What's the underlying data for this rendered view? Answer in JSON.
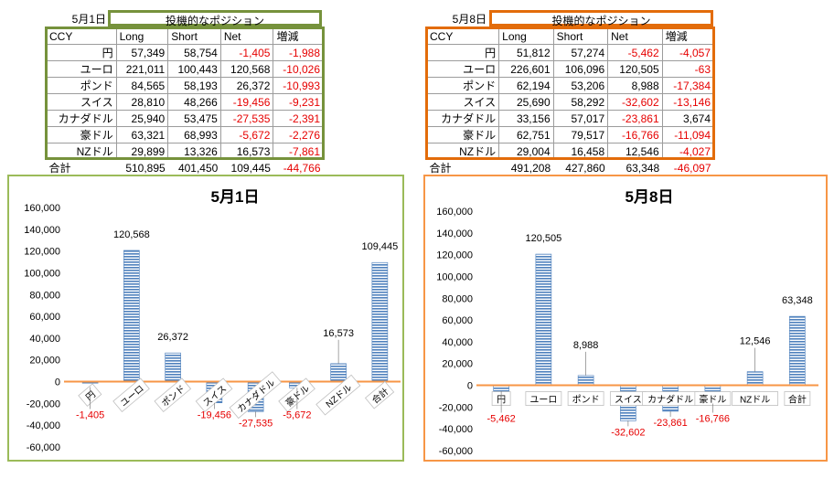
{
  "panels": [
    {
      "date": "5月1日",
      "title": "投機的なポジション",
      "headers": [
        "CCY",
        "Long",
        "Short",
        "Net",
        "増減"
      ],
      "rows": [
        {
          "ccy": "円",
          "long": "57,349",
          "short": "58,754",
          "net": "-1,405",
          "change": "-1,988"
        },
        {
          "ccy": "ユーロ",
          "long": "221,011",
          "short": "100,443",
          "net": "120,568",
          "change": "-10,026"
        },
        {
          "ccy": "ポンド",
          "long": "84,565",
          "short": "58,193",
          "net": "26,372",
          "change": "-10,993"
        },
        {
          "ccy": "スイス",
          "long": "28,810",
          "short": "48,266",
          "net": "-19,456",
          "change": "-9,231"
        },
        {
          "ccy": "カナダドル",
          "long": "25,940",
          "short": "53,475",
          "net": "-27,535",
          "change": "-2,391"
        },
        {
          "ccy": "豪ドル",
          "long": "63,321",
          "short": "68,993",
          "net": "-5,672",
          "change": "-2,276"
        },
        {
          "ccy": "NZドル",
          "long": "29,899",
          "short": "13,326",
          "net": "16,573",
          "change": "-7,861"
        }
      ],
      "total": {
        "label": "合計",
        "long": "510,895",
        "short": "401,450",
        "net": "109,445",
        "change": "-44,766"
      },
      "accent": "#76923c"
    },
    {
      "date": "5月8日",
      "title": "投機的なポジション",
      "headers": [
        "CCY",
        "Long",
        "Short",
        "Net",
        "増減"
      ],
      "rows": [
        {
          "ccy": "円",
          "long": "51,812",
          "short": "57,274",
          "net": "-5,462",
          "change": "-4,057"
        },
        {
          "ccy": "ユーロ",
          "long": "226,601",
          "short": "106,096",
          "net": "120,505",
          "change": "-63"
        },
        {
          "ccy": "ポンド",
          "long": "62,194",
          "short": "53,206",
          "net": "8,988",
          "change": "-17,384"
        },
        {
          "ccy": "スイス",
          "long": "25,690",
          "short": "58,292",
          "net": "-32,602",
          "change": "-13,146"
        },
        {
          "ccy": "カナダドル",
          "long": "33,156",
          "short": "57,017",
          "net": "-23,861",
          "change": "3,674"
        },
        {
          "ccy": "豪ドル",
          "long": "62,751",
          "short": "79,517",
          "net": "-16,766",
          "change": "-11,094"
        },
        {
          "ccy": "NZドル",
          "long": "29,004",
          "short": "16,458",
          "net": "12,546",
          "change": "-4,027"
        }
      ],
      "total": {
        "label": "合計",
        "long": "491,208",
        "short": "427,860",
        "net": "63,348",
        "change": "-46,097"
      },
      "accent": "#e36c0a"
    }
  ],
  "chart_data": [
    {
      "type": "bar",
      "title": "5月1日",
      "categories": [
        "円",
        "ユーロ",
        "ポンド",
        "スイス",
        "カナダドル",
        "豪ドル",
        "NZドル",
        "合計"
      ],
      "values": [
        -1405,
        120568,
        26372,
        -19456,
        -27535,
        -5672,
        16573,
        109445
      ],
      "value_labels": [
        "-1,405",
        "120,568",
        "26,372",
        "-19,456",
        "-27,535",
        "-5,672",
        "16,573",
        "109,445"
      ],
      "yticks": [
        "160,000",
        "140,000",
        "120,000",
        "100,000",
        "80,000",
        "60,000",
        "40,000",
        "20,000",
        "0",
        "-20,000",
        "-40,000",
        "-60,000"
      ],
      "ylim": [
        -60000,
        160000
      ],
      "bar_color": "#4f81bd",
      "axis_color": "#f79646",
      "negative_label_color": "#e60000",
      "border_color": "#9bbb59"
    },
    {
      "type": "bar",
      "title": "5月8日",
      "categories": [
        "円",
        "ユーロ",
        "ポンド",
        "スイス",
        "カナダドル",
        "豪ドル",
        "NZドル",
        "合計"
      ],
      "values": [
        -5462,
        120505,
        8988,
        -32602,
        -23861,
        -16766,
        12546,
        63348
      ],
      "value_labels": [
        "-5,462",
        "120,505",
        "8,988",
        "-32,602",
        "-23,861",
        "-16,766",
        "12,546",
        "63,348"
      ],
      "yticks": [
        "160,000",
        "140,000",
        "120,000",
        "100,000",
        "80,000",
        "60,000",
        "40,000",
        "20,000",
        "0",
        "-20,000",
        "-40,000",
        "-60,000"
      ],
      "ylim": [
        -60000,
        160000
      ],
      "bar_color": "#4f81bd",
      "axis_color": "#f79646",
      "negative_label_color": "#e60000",
      "border_color": "#f79646"
    }
  ]
}
